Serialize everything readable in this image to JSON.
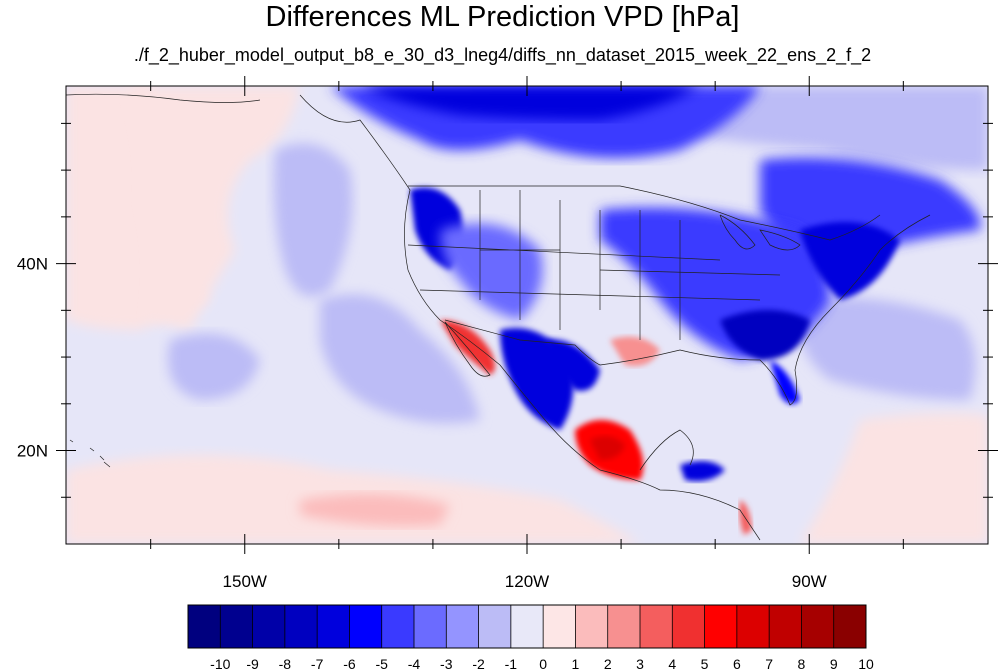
{
  "title": "Differences ML Prediction VPD [hPa]",
  "subtitle": "./f_2_huber_model_output_b8_e_30_d3_lneg4/diffs_nn_dataset_2015_week_22_ens_2_f_2",
  "map": {
    "lon_range": [
      -169,
      -71
    ],
    "lat_range": [
      10,
      59
    ],
    "lat_ticks": [
      {
        "value": 40,
        "label": "40N"
      },
      {
        "value": 20,
        "label": "20N"
      }
    ],
    "lon_ticks": [
      {
        "value": -150,
        "label": "150W"
      },
      {
        "value": -120,
        "label": "120W"
      },
      {
        "value": -90,
        "label": "90W"
      }
    ],
    "minor_lat_ticks": [
      15,
      25,
      30,
      35,
      45,
      50,
      55
    ],
    "minor_lon_ticks": [
      -160,
      -140,
      -130,
      -110,
      -100,
      -80
    ]
  },
  "colorbar": {
    "labels": [
      "-10",
      "-9",
      "-8",
      "-7",
      "-6",
      "-5",
      "-4",
      "-3",
      "-2",
      "-1",
      "0",
      "1",
      "2",
      "3",
      "4",
      "5",
      "6",
      "7",
      "8",
      "9",
      "10"
    ],
    "colors": [
      "#00007f",
      "#00008f",
      "#0000a8",
      "#0000c0",
      "#0000dd",
      "#0000ff",
      "#3a3aff",
      "#6b6bff",
      "#9494ff",
      "#bcbcf6",
      "#e8e8f8",
      "#fde6e6",
      "#fbbcbc",
      "#f79090",
      "#f45e5e",
      "#f03030",
      "#ff0000",
      "#dc0000",
      "#c00000",
      "#a60000",
      "#8a0000"
    ]
  }
}
